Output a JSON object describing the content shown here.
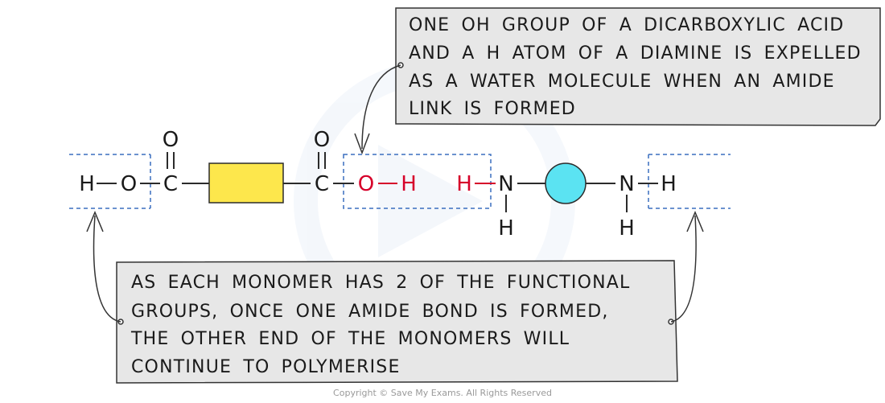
{
  "colors": {
    "bond": "#2b2b2b",
    "highlight_red": "#d6002a",
    "yellow_block": "#fde74c",
    "cyan_circle": "#5be3f2",
    "dashed_box": "#3a6fbf",
    "callout_fill": "#e7e7e7"
  },
  "icons": {
    "dicarboxylic_block": "yellow-rectangle",
    "diamine_block": "cyan-circle",
    "watermark": "save-my-exams-logo-watermark"
  },
  "molecule": {
    "acid": {
      "h1": "H",
      "o1": "O",
      "c1": "C",
      "c1_o": "O",
      "c2": "C",
      "c2_o": "O",
      "o2": "O",
      "h2": "H"
    },
    "amine": {
      "h1": "H",
      "n1": "N",
      "n1_h": "H",
      "n2": "N",
      "n2_h": "H",
      "h2": "H"
    }
  },
  "callout_top": {
    "lines": [
      "ONE OH GROUP OF A DICARBOXYLIC ACID",
      "AND A H ATOM OF A DIAMINE IS EXPELLED",
      "AS A WATER MOLECULE WHEN AN AMIDE",
      "LINK IS FORMED"
    ]
  },
  "callout_bottom": {
    "lines": [
      "AS EACH MONOMER HAS 2 OF THE FUNCTIONAL",
      "GROUPS, ONCE ONE AMIDE BOND IS FORMED,",
      "THE OTHER END OF THE MONOMERS WILL",
      "CONTINUE TO POLYMERISE"
    ]
  },
  "copyright": "Copyright © Save My Exams. All Rights Reserved"
}
